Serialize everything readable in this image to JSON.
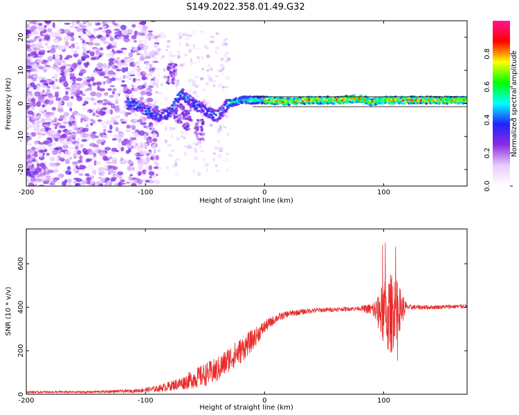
{
  "title": "S149.2022.358.01.49.G32",
  "chart_data": [
    {
      "type": "heatmap",
      "xlabel": "Height of straight line (km)",
      "ylabel": "Frequency (Hz)",
      "xlim": [
        -200,
        170
      ],
      "ylim": [
        -25,
        25
      ],
      "xticks": [
        -200,
        -100,
        0,
        100
      ],
      "yticks": [
        -20,
        -10,
        0,
        10,
        20
      ],
      "colorbar": {
        "label": "Normalized spectral amplitude",
        "range": [
          0,
          1
        ],
        "ticks": [
          "0.0",
          "0.2",
          "0.4",
          "0.6",
          "0.8"
        ],
        "colormap": [
          "#ffffff",
          "#e8ccff",
          "#8a2be2",
          "#2222ff",
          "#00ffff",
          "#00ff00",
          "#ffff00",
          "#ff0000",
          "#ff1493"
        ]
      },
      "ridge": {
        "note_x": [
          -110,
          -100,
          -90,
          -80,
          -70,
          -60,
          -50,
          -40,
          -30,
          -20,
          -10,
          0,
          20,
          40,
          60,
          80,
          90,
          100,
          120,
          140,
          170
        ],
        "frequency": [
          0,
          -2,
          -4,
          -3,
          3,
          0,
          -2,
          -4,
          0,
          1,
          1,
          1,
          0.5,
          1,
          1,
          1.5,
          0.5,
          1,
          1,
          1,
          1
        ]
      }
    },
    {
      "type": "line",
      "xlabel": "Height of straight line (km)",
      "ylabel": "SNR (10 * v/v)",
      "xlim": [
        -200,
        170
      ],
      "ylim": [
        0,
        760
      ],
      "xticks": [
        -200,
        -100,
        0,
        100
      ],
      "yticks": [
        0,
        200,
        400,
        600
      ],
      "color": "#e82a2a",
      "envelope": {
        "x": [
          -200,
          -150,
          -110,
          -90,
          -70,
          -55,
          -40,
          -30,
          -20,
          -10,
          0,
          10,
          20,
          40,
          60,
          80,
          90,
          95,
          100,
          105,
          110,
          120,
          140,
          170
        ],
        "mean": [
          10,
          10,
          15,
          25,
          50,
          80,
          110,
          160,
          200,
          250,
          310,
          350,
          370,
          385,
          390,
          395,
          390,
          380,
          370,
          360,
          390,
          400,
          400,
          405
        ],
        "spread": [
          5,
          5,
          8,
          15,
          30,
          50,
          60,
          60,
          60,
          50,
          30,
          20,
          15,
          12,
          10,
          10,
          30,
          80,
          150,
          200,
          150,
          12,
          10,
          10
        ]
      }
    }
  ]
}
